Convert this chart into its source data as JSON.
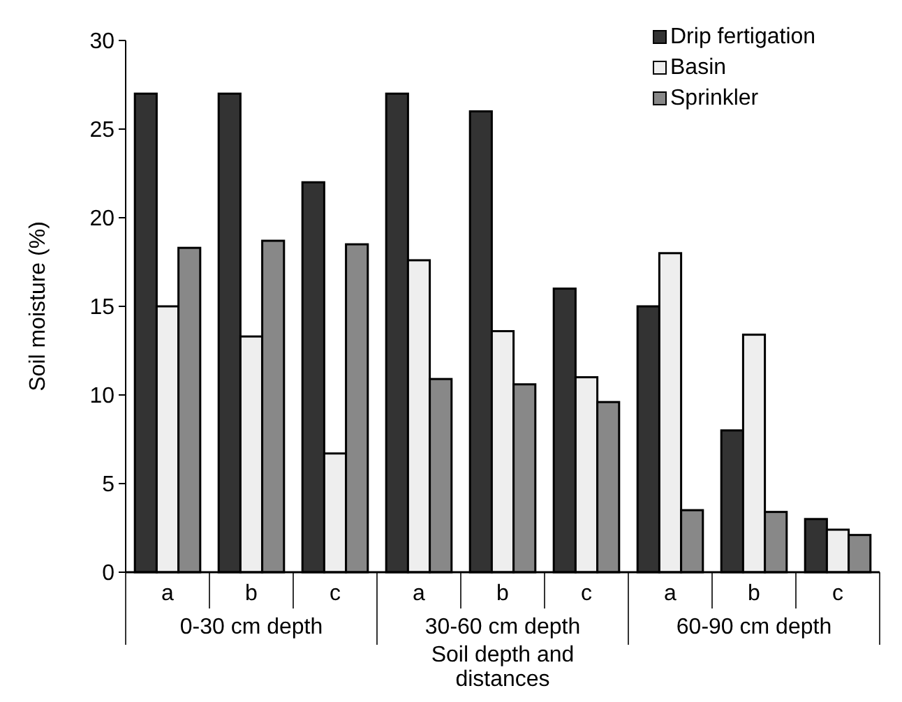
{
  "chart_data": {
    "type": "bar",
    "ylabel": "Soil moisture (%)",
    "xlabel": "Soil depth and distances",
    "categories": [
      "a",
      "b",
      "c",
      "a",
      "b",
      "c",
      "a",
      "b",
      "c"
    ],
    "annotations": [
      "0-30 cm depth",
      "30-60 cm depth",
      "60-90 cm depth"
    ],
    "series": [
      {
        "name": "Drip fertigation",
        "color": "#333333",
        "values": [
          27,
          27,
          22,
          27,
          26,
          16,
          15,
          8,
          3
        ]
      },
      {
        "name": "Basin",
        "color": "#eeeeee",
        "values": [
          15,
          13.3,
          6.7,
          17.6,
          13.6,
          11,
          18,
          13.4,
          2.4
        ]
      },
      {
        "name": "Sprinkler",
        "color": "#888888",
        "values": [
          18.3,
          18.7,
          18.5,
          10.9,
          10.6,
          9.6,
          3.5,
          3.4,
          2.1
        ]
      }
    ],
    "ylim": [
      0,
      30
    ],
    "yticks": [
      0,
      5,
      10,
      15,
      20,
      25,
      30
    ],
    "grid": false,
    "legend": "top right"
  }
}
